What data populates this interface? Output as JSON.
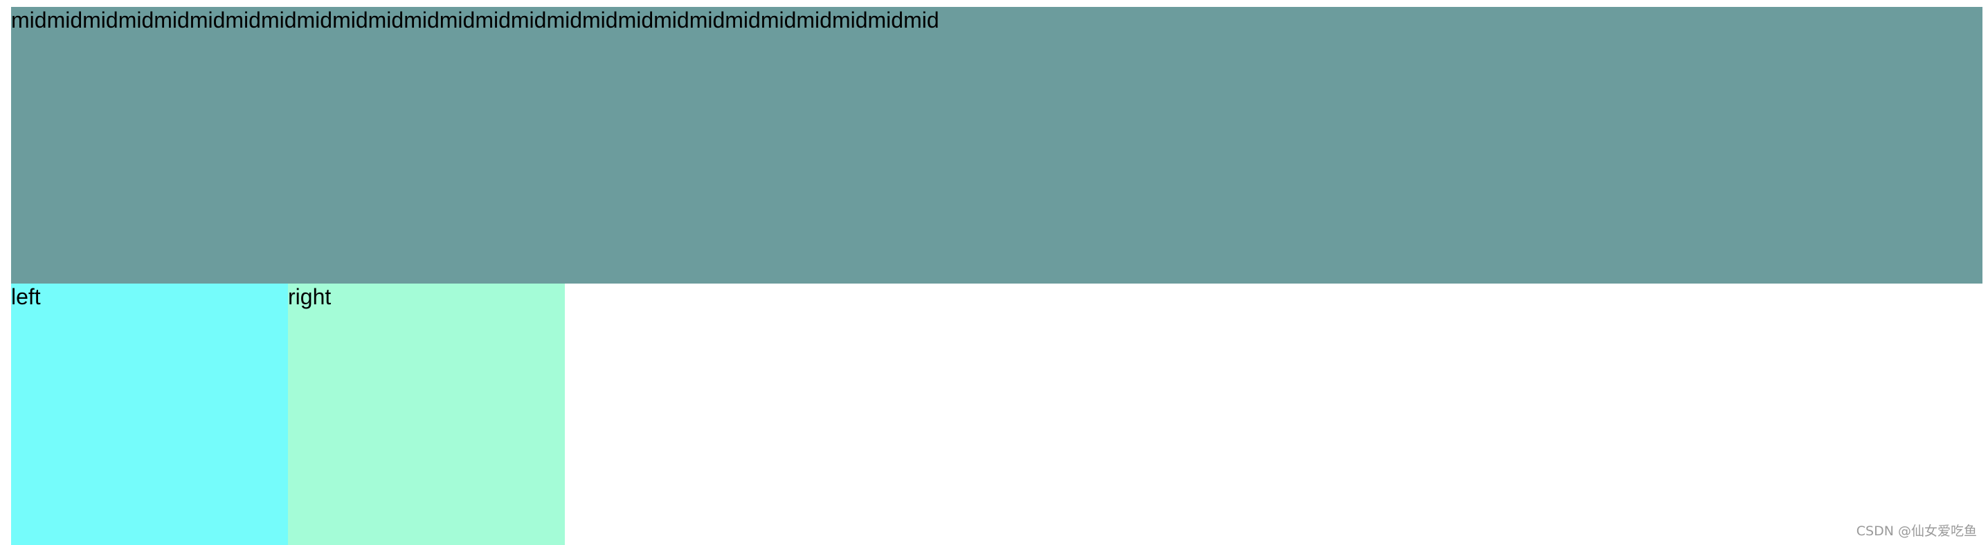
{
  "colors": {
    "mid_bg": "#6c9c9d",
    "left_bg": "#75fcfb",
    "right_bg": "#a4fcd7",
    "text": "#000000",
    "watermark": "#9a9a9a"
  },
  "mid": {
    "text": "midmidmidmidmidmidmidmidmidmidmidmidmidmidmidmidmidmidmidmidmidmidmidmidmidmid"
  },
  "left": {
    "text": "left"
  },
  "right": {
    "text": "right"
  },
  "watermark": {
    "text": "CSDN @仙女爱吃鱼"
  }
}
